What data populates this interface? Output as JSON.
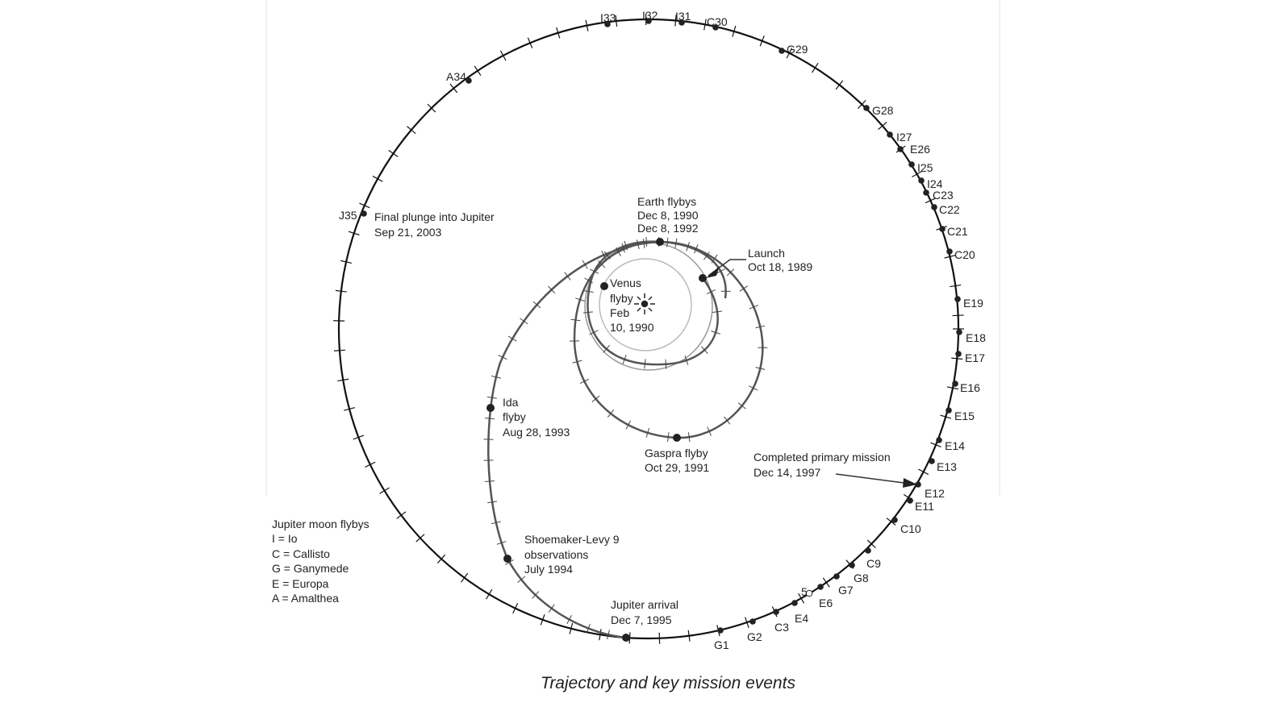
{
  "caption": "Trajectory and key mission events",
  "colors": {
    "orbit": "#111111",
    "trajectory": "#555555",
    "planet_orbit": "#999999"
  },
  "events": {
    "earth": [
      "Earth flybys",
      "Dec 8, 1990",
      "Dec 8, 1992"
    ],
    "launch": [
      "Launch",
      "Oct 18, 1989"
    ],
    "venus": [
      "Venus",
      "flyby",
      "Feb",
      "10, 1990"
    ],
    "gaspra": [
      "Gaspra flyby",
      "Oct 29, 1991"
    ],
    "ida": [
      "Ida",
      "flyby",
      "Aug 28, 1993"
    ],
    "sl9": [
      "Shoemaker-Levy 9",
      "observations",
      "July 1994"
    ],
    "arrival": [
      "Jupiter arrival",
      "Dec 7, 1995"
    ],
    "plunge": [
      "Final plunge into Jupiter",
      "Sep 21, 2003"
    ],
    "primary": [
      "Completed primary mission",
      "Dec 14, 1997"
    ]
  },
  "legend": [
    "Jupiter moon flybys",
    "I = Io",
    "C = Callisto",
    "G = Ganymede",
    "E = Europa",
    "A = Amalthea"
  ],
  "flybys": [
    "I33",
    "I32",
    "I31",
    "C30",
    "G29",
    "G28",
    "I27",
    "E26",
    "I25",
    "I24",
    "C23",
    "C22",
    "C21",
    "C20",
    "E19",
    "E18",
    "E17",
    "E16",
    "E15",
    "E14",
    "E13",
    "E12",
    "E11",
    "C10",
    "C9",
    "G8",
    "G7",
    "E6",
    "5",
    "E4",
    "C3",
    "G2",
    "G1",
    "A34",
    "J35"
  ]
}
